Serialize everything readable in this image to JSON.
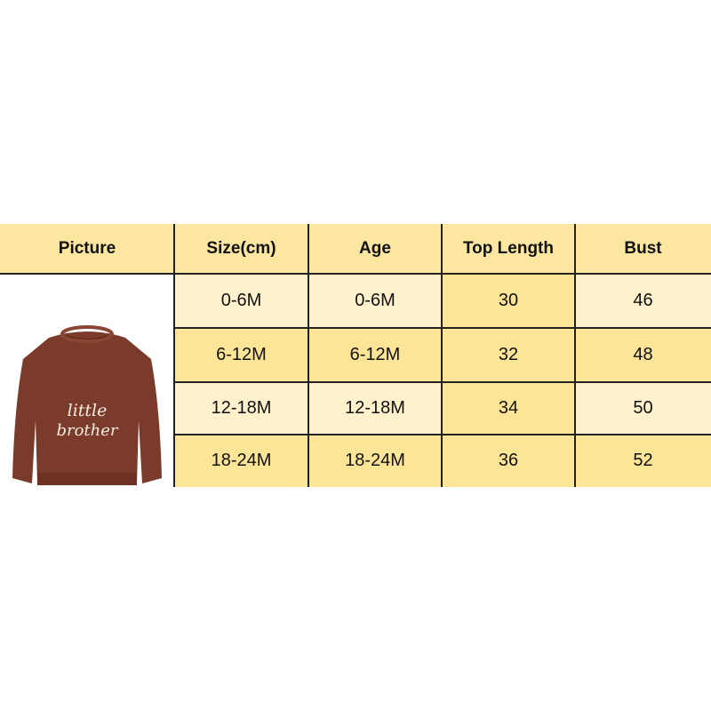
{
  "table": {
    "headers": [
      "Picture",
      "Size(cm)",
      "Age",
      "Top Length",
      "Bust"
    ],
    "rows": [
      {
        "size": "0-6M",
        "age": "0-6M",
        "top_length": "30",
        "bust": "46"
      },
      {
        "size": "6-12M",
        "age": "6-12M",
        "top_length": "32",
        "bust": "48"
      },
      {
        "size": "12-18M",
        "age": "12-18M",
        "top_length": "34",
        "bust": "50"
      },
      {
        "size": "18-24M",
        "age": "18-24M",
        "top_length": "36",
        "bust": "52"
      }
    ]
  },
  "product_image": {
    "embroidery_text": "little brother",
    "sweater_color": "#7b3b2b"
  },
  "colors": {
    "header": "#fde6a0",
    "light_cell": "#fff1cc",
    "dark_cell": "#fde597",
    "border": "#222222"
  }
}
